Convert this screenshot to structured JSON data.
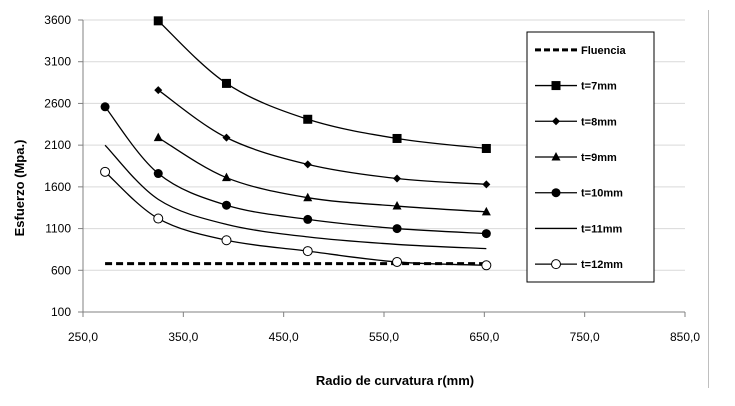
{
  "chart_data": {
    "type": "line",
    "title": "",
    "xlabel": "Radio de curvatura r(mm)",
    "ylabel": "Esfuerzo (Mpa.)",
    "xlim": [
      250,
      850
    ],
    "ylim": [
      100,
      3600
    ],
    "x_ticks": [
      "250,0",
      "350,0",
      "450,0",
      "550,0",
      "650,0",
      "750,0",
      "850,0"
    ],
    "y_ticks": [
      "100",
      "600",
      "1100",
      "1600",
      "2100",
      "2600",
      "3100",
      "3600"
    ],
    "grid": "horizontal",
    "legend_position": "right",
    "series": [
      {
        "name": "Fluencia",
        "marker": "none",
        "dashed": true,
        "x": [
          272,
          652
        ],
        "y": [
          680,
          680
        ]
      },
      {
        "name": "t=7mm",
        "marker": "square",
        "dashed": false,
        "x": [
          325,
          393,
          474,
          563,
          652
        ],
        "y": [
          3590,
          2840,
          2410,
          2180,
          2060
        ]
      },
      {
        "name": "t=8mm",
        "marker": "diamond",
        "dashed": false,
        "x": [
          325,
          393,
          474,
          563,
          652
        ],
        "y": [
          2760,
          2190,
          1870,
          1700,
          1630
        ]
      },
      {
        "name": "t=9mm",
        "marker": "triangle",
        "dashed": false,
        "x": [
          325,
          393,
          474,
          563,
          652
        ],
        "y": [
          2190,
          1710,
          1470,
          1370,
          1300
        ]
      },
      {
        "name": "t=10mm",
        "marker": "circle",
        "dashed": false,
        "x": [
          272,
          325,
          393,
          474,
          563,
          652
        ],
        "y": [
          2560,
          1760,
          1380,
          1210,
          1100,
          1040
        ]
      },
      {
        "name": "t=11mm",
        "marker": "none",
        "dashed": false,
        "x": [
          272,
          325,
          393,
          474,
          563,
          652
        ],
        "y": [
          2100,
          1450,
          1150,
          1000,
          910,
          860
        ]
      },
      {
        "name": "t=12mm",
        "marker": "open-circle",
        "dashed": false,
        "x": [
          272,
          325,
          393,
          474,
          563,
          652
        ],
        "y": [
          1780,
          1220,
          960,
          830,
          700,
          660
        ]
      }
    ]
  }
}
